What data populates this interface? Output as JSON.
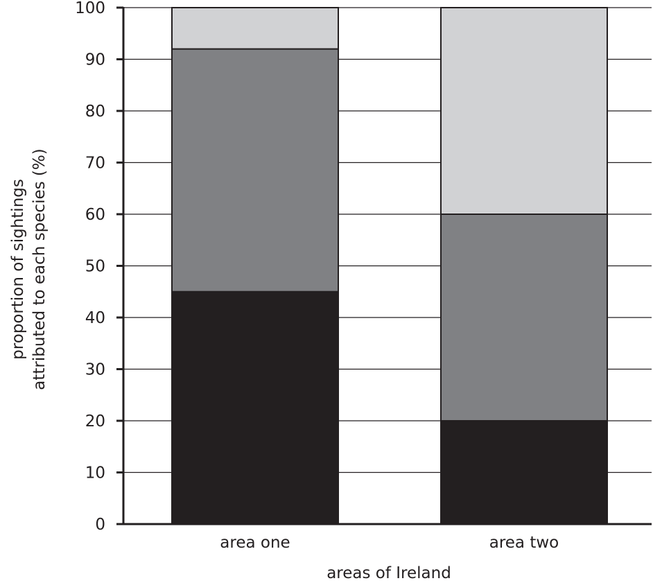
{
  "chart_data": {
    "type": "bar",
    "stacked": true,
    "title": "",
    "xlabel": "areas of Ireland",
    "ylabel_lines": [
      "proportion of sightings",
      "attributed to each species (%)"
    ],
    "categories": [
      "area one",
      "area two"
    ],
    "series": [
      {
        "color": "#231f20",
        "values": [
          45,
          20
        ]
      },
      {
        "color": "#808184",
        "values": [
          47,
          40
        ]
      },
      {
        "color": "#d1d2d4",
        "values": [
          8,
          40
        ]
      }
    ],
    "ylim": [
      0,
      100
    ],
    "yticks": [
      0,
      10,
      20,
      30,
      40,
      50,
      60,
      70,
      80,
      90,
      100
    ],
    "grid": true,
    "legend": "none"
  }
}
